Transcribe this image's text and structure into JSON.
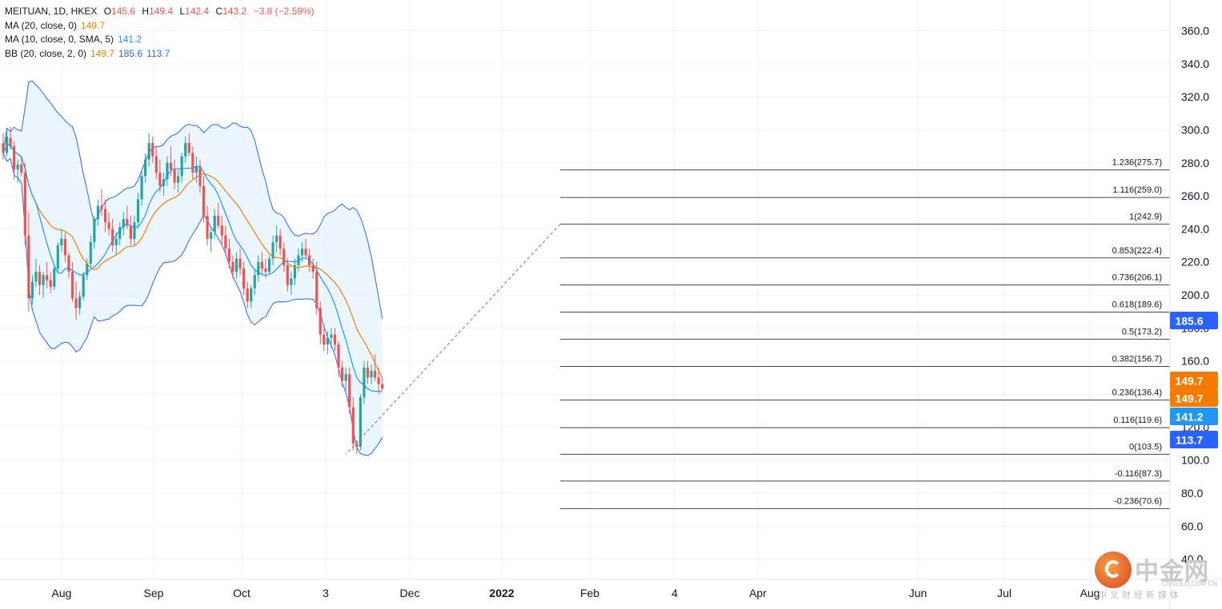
{
  "legend": {
    "symbol": "MEITUAN, 1D, HKEX",
    "open_label": "O",
    "open": "145.6",
    "high_label": "H",
    "high": "149.4",
    "low_label": "L",
    "low": "142.4",
    "close_label": "C",
    "close": "143.2",
    "change": "−3.8 (−2.59%)",
    "ma20_label": "MA (20, close, 0)",
    "ma20_value": "149.7",
    "ma10_label": "MA (10, close, 0, SMA, 5)",
    "ma10_value": "141.2",
    "bb_label": "BB (20, close, 2, 0)",
    "bb_basis": "149.7",
    "bb_upper": "185.6",
    "bb_lower": "113.7"
  },
  "watermark": {
    "name": "中金网",
    "url": "CNGOLD.COM.CN",
    "tagline": "中文财经新媒体"
  },
  "colors": {
    "up": "#26a69a",
    "down": "#ef5350",
    "ma20": "#f57c00",
    "ma10": "#2196f3",
    "bb_line": "#2962ff",
    "bb_fill": "#e3f2fd",
    "fib_line": "#434651"
  },
  "chart_data": {
    "type": "candlestick",
    "symbol": "MEITUAN",
    "timeframe": "1D",
    "ylim": [
      40,
      370
    ],
    "y_ticks": [
      "360.0",
      "340.0",
      "320.0",
      "300.0",
      "280.0",
      "260.0",
      "240.0",
      "220.0",
      "200.0",
      "180.0",
      "160.0",
      "140.0",
      "120.0",
      "100.0",
      "80.0",
      "60.0",
      "40.0"
    ],
    "x_ticks": [
      "Aug",
      "Sep",
      "Oct",
      "3",
      "Dec",
      "2022",
      "Feb",
      "4",
      "Apr",
      "Jun",
      "Jul",
      "Aug"
    ],
    "x_tick_bold": [
      false,
      false,
      false,
      false,
      false,
      true,
      false,
      false,
      false,
      false,
      false,
      false
    ],
    "grid": true,
    "candles": [
      [
        292,
        298,
        282,
        286
      ],
      [
        286,
        300,
        284,
        296
      ],
      [
        295,
        302,
        288,
        290
      ],
      [
        290,
        293,
        270,
        276
      ],
      [
        276,
        282,
        268,
        279
      ],
      [
        279,
        284,
        272,
        274
      ],
      [
        274,
        280,
        230,
        236
      ],
      [
        236,
        250,
        190,
        198
      ],
      [
        198,
        212,
        194,
        208
      ],
      [
        208,
        222,
        205,
        214
      ],
      [
        214,
        218,
        200,
        206
      ],
      [
        206,
        214,
        198,
        212
      ],
      [
        212,
        220,
        204,
        209
      ],
      [
        209,
        214,
        201,
        205
      ],
      [
        205,
        218,
        203,
        216
      ],
      [
        216,
        232,
        214,
        230
      ],
      [
        230,
        240,
        226,
        234
      ],
      [
        234,
        238,
        220,
        224
      ],
      [
        224,
        226,
        210,
        214
      ],
      [
        214,
        220,
        196,
        198
      ],
      [
        198,
        208,
        185,
        192
      ],
      [
        192,
        202,
        188,
        199
      ],
      [
        199,
        214,
        197,
        212
      ],
      [
        212,
        222,
        209,
        219
      ],
      [
        219,
        236,
        216,
        232
      ],
      [
        232,
        248,
        228,
        246
      ],
      [
        246,
        258,
        242,
        254
      ],
      [
        254,
        264,
        248,
        252
      ],
      [
        252,
        258,
        238,
        244
      ],
      [
        244,
        250,
        236,
        240
      ],
      [
        240,
        246,
        226,
        230
      ],
      [
        230,
        238,
        224,
        234
      ],
      [
        234,
        244,
        230,
        241
      ],
      [
        241,
        250,
        236,
        246
      ],
      [
        246,
        254,
        240,
        242
      ],
      [
        242,
        248,
        230,
        234
      ],
      [
        234,
        248,
        230,
        244
      ],
      [
        244,
        262,
        240,
        258
      ],
      [
        258,
        276,
        254,
        272
      ],
      [
        272,
        286,
        268,
        282
      ],
      [
        282,
        298,
        278,
        292
      ],
      [
        292,
        296,
        280,
        284
      ],
      [
        284,
        290,
        270,
        274
      ],
      [
        274,
        282,
        262,
        266
      ],
      [
        266,
        274,
        260,
        270
      ],
      [
        270,
        284,
        266,
        280
      ],
      [
        280,
        290,
        272,
        276
      ],
      [
        276,
        282,
        264,
        268
      ],
      [
        268,
        276,
        262,
        272
      ],
      [
        272,
        286,
        268,
        284
      ],
      [
        284,
        296,
        280,
        292
      ],
      [
        292,
        298,
        284,
        286
      ],
      [
        286,
        290,
        270,
        274
      ],
      [
        274,
        284,
        268,
        278
      ],
      [
        278,
        282,
        262,
        266
      ],
      [
        266,
        272,
        244,
        248
      ],
      [
        248,
        254,
        230,
        234
      ],
      [
        234,
        240,
        226,
        238
      ],
      [
        238,
        252,
        234,
        248
      ],
      [
        248,
        256,
        240,
        242
      ],
      [
        242,
        248,
        230,
        236
      ],
      [
        236,
        242,
        224,
        228
      ],
      [
        228,
        234,
        216,
        220
      ],
      [
        220,
        224,
        210,
        214
      ],
      [
        214,
        226,
        210,
        222
      ],
      [
        222,
        228,
        212,
        216
      ],
      [
        216,
        220,
        200,
        204
      ],
      [
        204,
        208,
        192,
        196
      ],
      [
        196,
        206,
        192,
        204
      ],
      [
        204,
        216,
        200,
        212
      ],
      [
        212,
        224,
        208,
        220
      ],
      [
        220,
        226,
        212,
        216
      ],
      [
        216,
        222,
        210,
        214
      ],
      [
        214,
        224,
        212,
        222
      ],
      [
        222,
        236,
        218,
        232
      ],
      [
        232,
        242,
        226,
        236
      ],
      [
        236,
        240,
        224,
        228
      ],
      [
        228,
        232,
        214,
        218
      ],
      [
        218,
        222,
        202,
        206
      ],
      [
        206,
        214,
        200,
        210
      ],
      [
        210,
        222,
        206,
        218
      ],
      [
        218,
        228,
        214,
        224
      ],
      [
        224,
        232,
        220,
        228
      ],
      [
        228,
        234,
        222,
        224
      ],
      [
        224,
        228,
        214,
        218
      ],
      [
        218,
        222,
        210,
        214
      ],
      [
        214,
        220,
        188,
        192
      ],
      [
        192,
        196,
        170,
        176
      ],
      [
        176,
        182,
        166,
        170
      ],
      [
        170,
        178,
        164,
        174
      ],
      [
        174,
        180,
        168,
        176
      ],
      [
        176,
        180,
        166,
        170
      ],
      [
        170,
        172,
        150,
        156
      ],
      [
        156,
        160,
        144,
        148
      ],
      [
        148,
        156,
        142,
        152
      ],
      [
        152,
        156,
        128,
        132
      ],
      [
        132,
        138,
        106,
        110
      ],
      [
        110,
        112,
        103.5,
        108
      ],
      [
        108,
        140,
        106,
        138
      ],
      [
        138,
        160,
        134,
        156
      ],
      [
        156,
        160,
        146,
        150
      ],
      [
        150,
        158,
        146,
        154
      ],
      [
        154,
        164,
        148,
        150
      ],
      [
        150,
        156,
        140,
        146
      ],
      [
        146,
        150,
        142,
        143.2
      ]
    ],
    "ma20_last": 149.7,
    "ma10_last": 141.2,
    "bb_upper_last": 185.6,
    "bb_lower_last": 113.7,
    "fib_levels": [
      {
        "ratio": 1.236,
        "label": "1.236(275.7)",
        "value": 275.7
      },
      {
        "ratio": 1.116,
        "label": "1.116(259.0)",
        "value": 259.0
      },
      {
        "ratio": 1,
        "label": "1(242.9)",
        "value": 242.9
      },
      {
        "ratio": 0.853,
        "label": "0.853(222.4)",
        "value": 222.4
      },
      {
        "ratio": 0.736,
        "label": "0.736(206.1)",
        "value": 206.1
      },
      {
        "ratio": 0.618,
        "label": "0.618(189.6)",
        "value": 189.6
      },
      {
        "ratio": 0.5,
        "label": "0.5(173.2)",
        "value": 173.2
      },
      {
        "ratio": 0.382,
        "label": "0.382(156.7)",
        "value": 156.7
      },
      {
        "ratio": 0.236,
        "label": "0.236(136.4)",
        "value": 136.4
      },
      {
        "ratio": 0.116,
        "label": "0.116(119.6)",
        "value": 119.6
      },
      {
        "ratio": 0,
        "label": "0(103.5)",
        "value": 103.5
      },
      {
        "ratio": -0.116,
        "label": "-0.116(87.3)",
        "value": 87.3
      },
      {
        "ratio": -0.236,
        "label": "-0.236(70.6)",
        "value": 70.6
      }
    ],
    "price_tags": [
      {
        "value": 185.6,
        "label": "185.6",
        "color": "#2962ff"
      },
      {
        "value": 149.7,
        "label": "149.7",
        "color": "#f57c00"
      },
      {
        "value": 141.2,
        "label": "141.2",
        "color": "#2196f3"
      },
      {
        "value": 113.7,
        "label": "113.7",
        "color": "#2962ff"
      }
    ]
  }
}
